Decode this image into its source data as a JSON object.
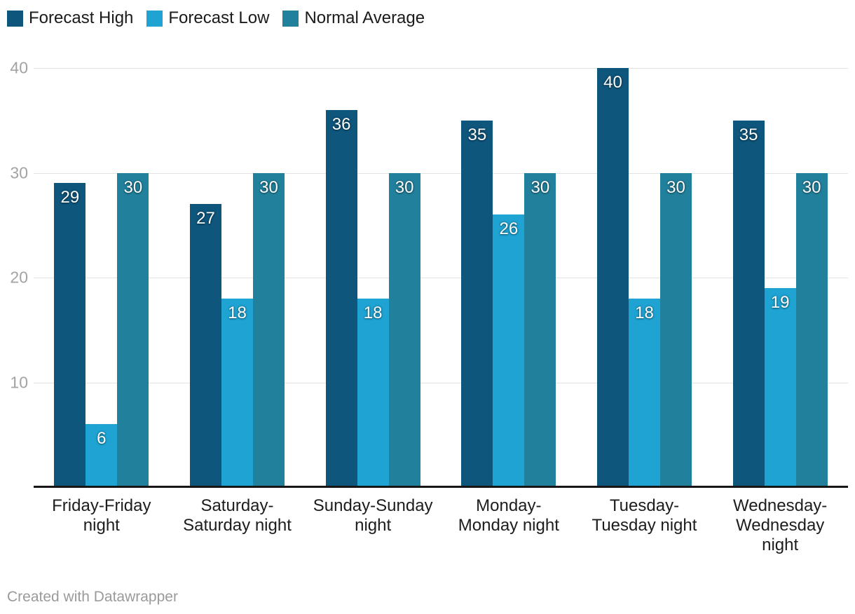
{
  "legend": {
    "items": [
      {
        "label": "Forecast High",
        "color": "#0e567c"
      },
      {
        "label": "Forecast Low",
        "color": "#1ea3d3"
      },
      {
        "label": "Normal Average",
        "color": "#21819d"
      }
    ]
  },
  "footer": {
    "credit": "Created with Datawrapper"
  },
  "chart_data": {
    "type": "bar",
    "title": "",
    "categories": [
      "Friday-Friday night",
      "Saturday-Saturday night",
      "Sunday-Sunday night",
      "Monday-Monday night",
      "Tuesday-Tuesday night",
      "Wednesday-Wednesday night"
    ],
    "category_lines": [
      [
        "Friday-Friday",
        "night"
      ],
      [
        "Saturday-",
        "Saturday night"
      ],
      [
        "Sunday-Sunday",
        "night"
      ],
      [
        "Monday-",
        "Monday night"
      ],
      [
        "Tuesday-",
        "Tuesday night"
      ],
      [
        "Wednesday-",
        "Wednesday",
        "night"
      ]
    ],
    "series": [
      {
        "name": "Forecast High",
        "color": "#0e567c",
        "values": [
          29,
          27,
          36,
          35,
          40,
          35
        ]
      },
      {
        "name": "Forecast Low",
        "color": "#1ea3d3",
        "values": [
          6,
          18,
          18,
          26,
          18,
          19
        ]
      },
      {
        "name": "Normal Average",
        "color": "#21819d",
        "values": [
          30,
          30,
          30,
          30,
          30,
          30
        ]
      }
    ],
    "ylim": [
      0,
      40
    ],
    "yticks": [
      10,
      20,
      30,
      40
    ],
    "grid": true,
    "grid_color": "#e2e2e2",
    "axis_color": "#161616",
    "tick_label_color": "#a3a3a3",
    "legend_position": "top-left",
    "value_labels": true
  }
}
